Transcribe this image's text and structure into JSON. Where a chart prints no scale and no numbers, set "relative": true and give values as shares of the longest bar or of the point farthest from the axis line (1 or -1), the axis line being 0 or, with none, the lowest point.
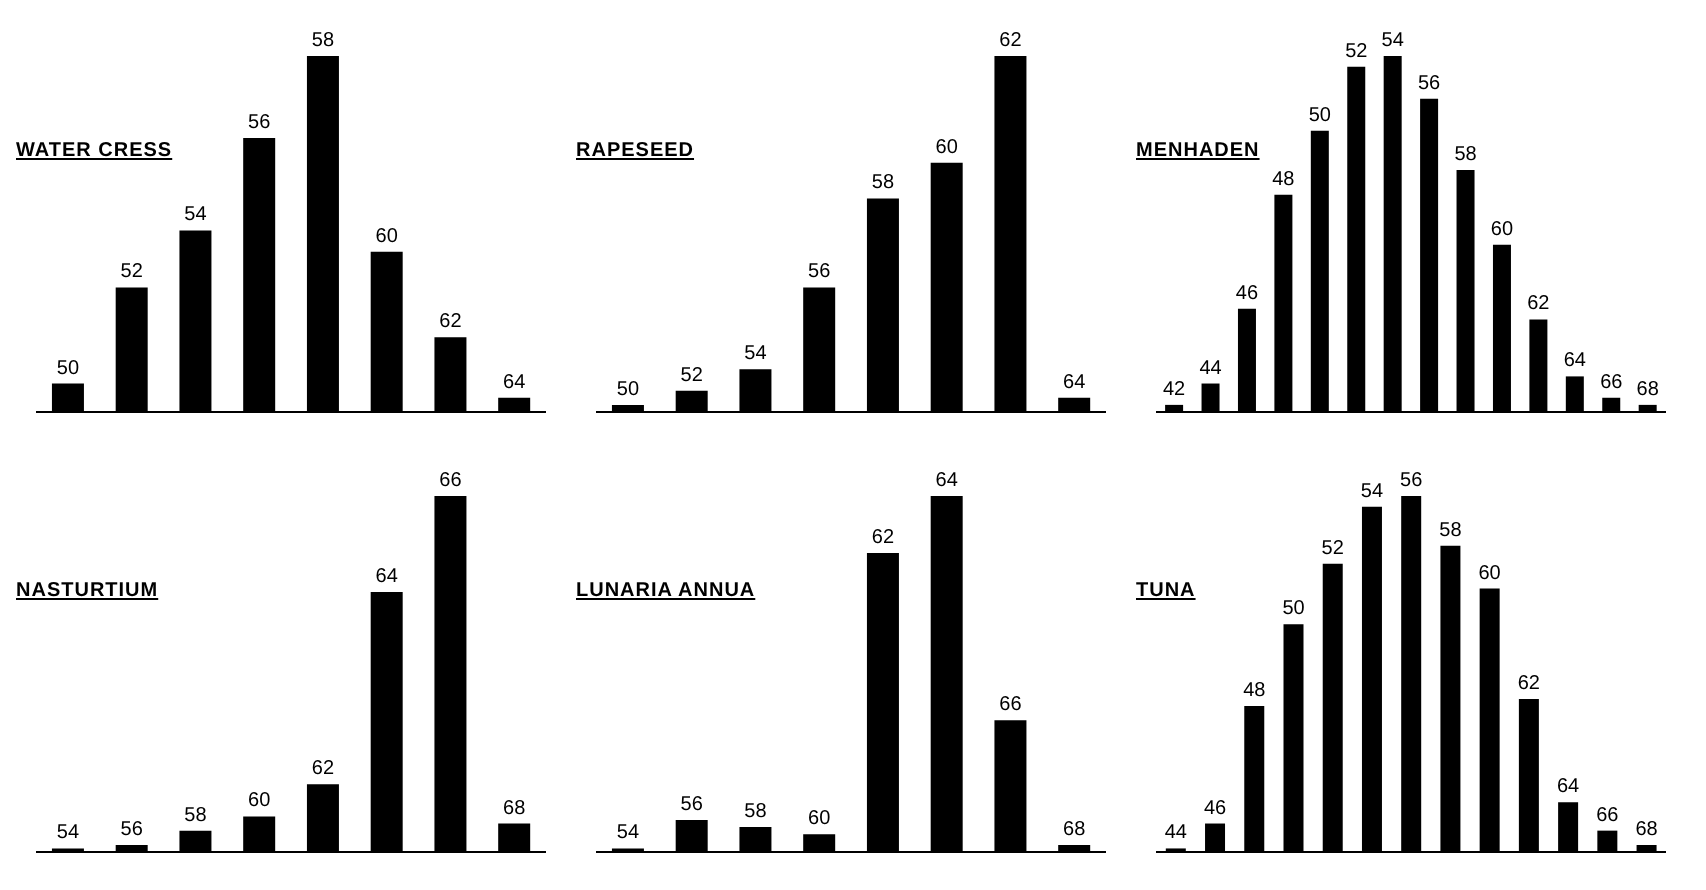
{
  "chart_data": [
    {
      "type": "bar",
      "title": "WATER CRESS",
      "relative": true,
      "color": "#000000",
      "categories": [
        "50",
        "52",
        "54",
        "56",
        "58",
        "60",
        "62",
        "64"
      ],
      "values": [
        0.08,
        0.35,
        0.51,
        0.77,
        1,
        0.45,
        0.21,
        0.04
      ]
    },
    {
      "type": "bar",
      "title": "RAPESEED",
      "relative": true,
      "color": "#000000",
      "categories": [
        "50",
        "52",
        "54",
        "56",
        "58",
        "60",
        "62",
        "64"
      ],
      "values": [
        0.02,
        0.06,
        0.12,
        0.35,
        0.6,
        0.7,
        1,
        0.04
      ]
    },
    {
      "type": "bar",
      "title": "MENHADEN",
      "relative": true,
      "color": "#000000",
      "categories": [
        "42",
        "44",
        "46",
        "48",
        "50",
        "52",
        "54",
        "56",
        "58",
        "60",
        "62",
        "64",
        "66",
        "68"
      ],
      "values": [
        0.02,
        0.08,
        0.29,
        0.61,
        0.79,
        0.97,
        1,
        0.88,
        0.68,
        0.47,
        0.26,
        0.1,
        0.04,
        0.02
      ]
    },
    {
      "type": "bar",
      "title": "NASTURTIUM",
      "relative": true,
      "color": "#000000",
      "categories": [
        "54",
        "56",
        "58",
        "60",
        "62",
        "64",
        "66",
        "68"
      ],
      "values": [
        0.01,
        0.02,
        0.06,
        0.1,
        0.19,
        0.73,
        1,
        0.08
      ]
    },
    {
      "type": "bar",
      "title": "LUNARIA ANNUA",
      "relative": true,
      "color": "#000000",
      "categories": [
        "54",
        "56",
        "58",
        "60",
        "62",
        "64",
        "66",
        "68"
      ],
      "values": [
        0.01,
        0.09,
        0.07,
        0.05,
        0.84,
        1,
        0.37,
        0.02
      ]
    },
    {
      "type": "bar",
      "title": "TUNA",
      "relative": true,
      "color": "#000000",
      "categories": [
        "44",
        "46",
        "48",
        "50",
        "52",
        "54",
        "56",
        "58",
        "60",
        "62",
        "64",
        "66",
        "68"
      ],
      "values": [
        0.01,
        0.08,
        0.41,
        0.64,
        0.81,
        0.97,
        1,
        0.86,
        0.74,
        0.43,
        0.14,
        0.06,
        0.02
      ]
    }
  ]
}
